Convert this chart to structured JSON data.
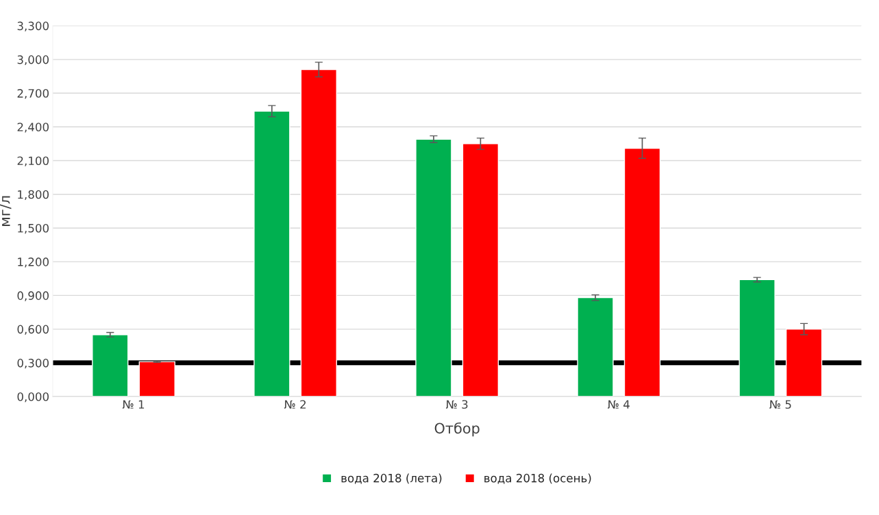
{
  "chart_data": {
    "type": "bar",
    "xlabel": "Отбор",
    "ylabel": "мг/л",
    "categories": [
      "№ 1",
      "№ 2",
      "№ 3",
      "№ 4",
      "№ 5"
    ],
    "series": [
      {
        "name": "вода 2018 (лета)",
        "color": "#00b050",
        "values": [
          0.55,
          2.54,
          2.29,
          0.88,
          1.04
        ],
        "errors": [
          0.02,
          0.05,
          0.03,
          0.025,
          0.02
        ]
      },
      {
        "name": "вода 2018 (осень)",
        "color": "#ff0000",
        "values": [
          0.31,
          2.91,
          2.25,
          2.21,
          0.6
        ],
        "errors": [
          0.005,
          0.065,
          0.05,
          0.09,
          0.05
        ]
      }
    ],
    "ylim": [
      0,
      3.3
    ],
    "yticks": [
      {
        "value": 0,
        "label": "0,000"
      },
      {
        "value": 0.3,
        "label": "0,300"
      },
      {
        "value": 0.6,
        "label": "0,600"
      },
      {
        "value": 0.9,
        "label": "0,900"
      },
      {
        "value": 1.2,
        "label": "1,200"
      },
      {
        "value": 1.5,
        "label": "1,500"
      },
      {
        "value": 1.8,
        "label": "1,800"
      },
      {
        "value": 2.1,
        "label": "2,100"
      },
      {
        "value": 2.4,
        "label": "2,400"
      },
      {
        "value": 2.7,
        "label": "2,700"
      },
      {
        "value": 3.0,
        "label": "3,000"
      },
      {
        "value": 3.3,
        "label": "3,300"
      }
    ],
    "ref_lines": [
      {
        "axis": "y",
        "value": 0.3,
        "color": "#000000"
      }
    ],
    "grid": "y",
    "legend": "bottom"
  }
}
